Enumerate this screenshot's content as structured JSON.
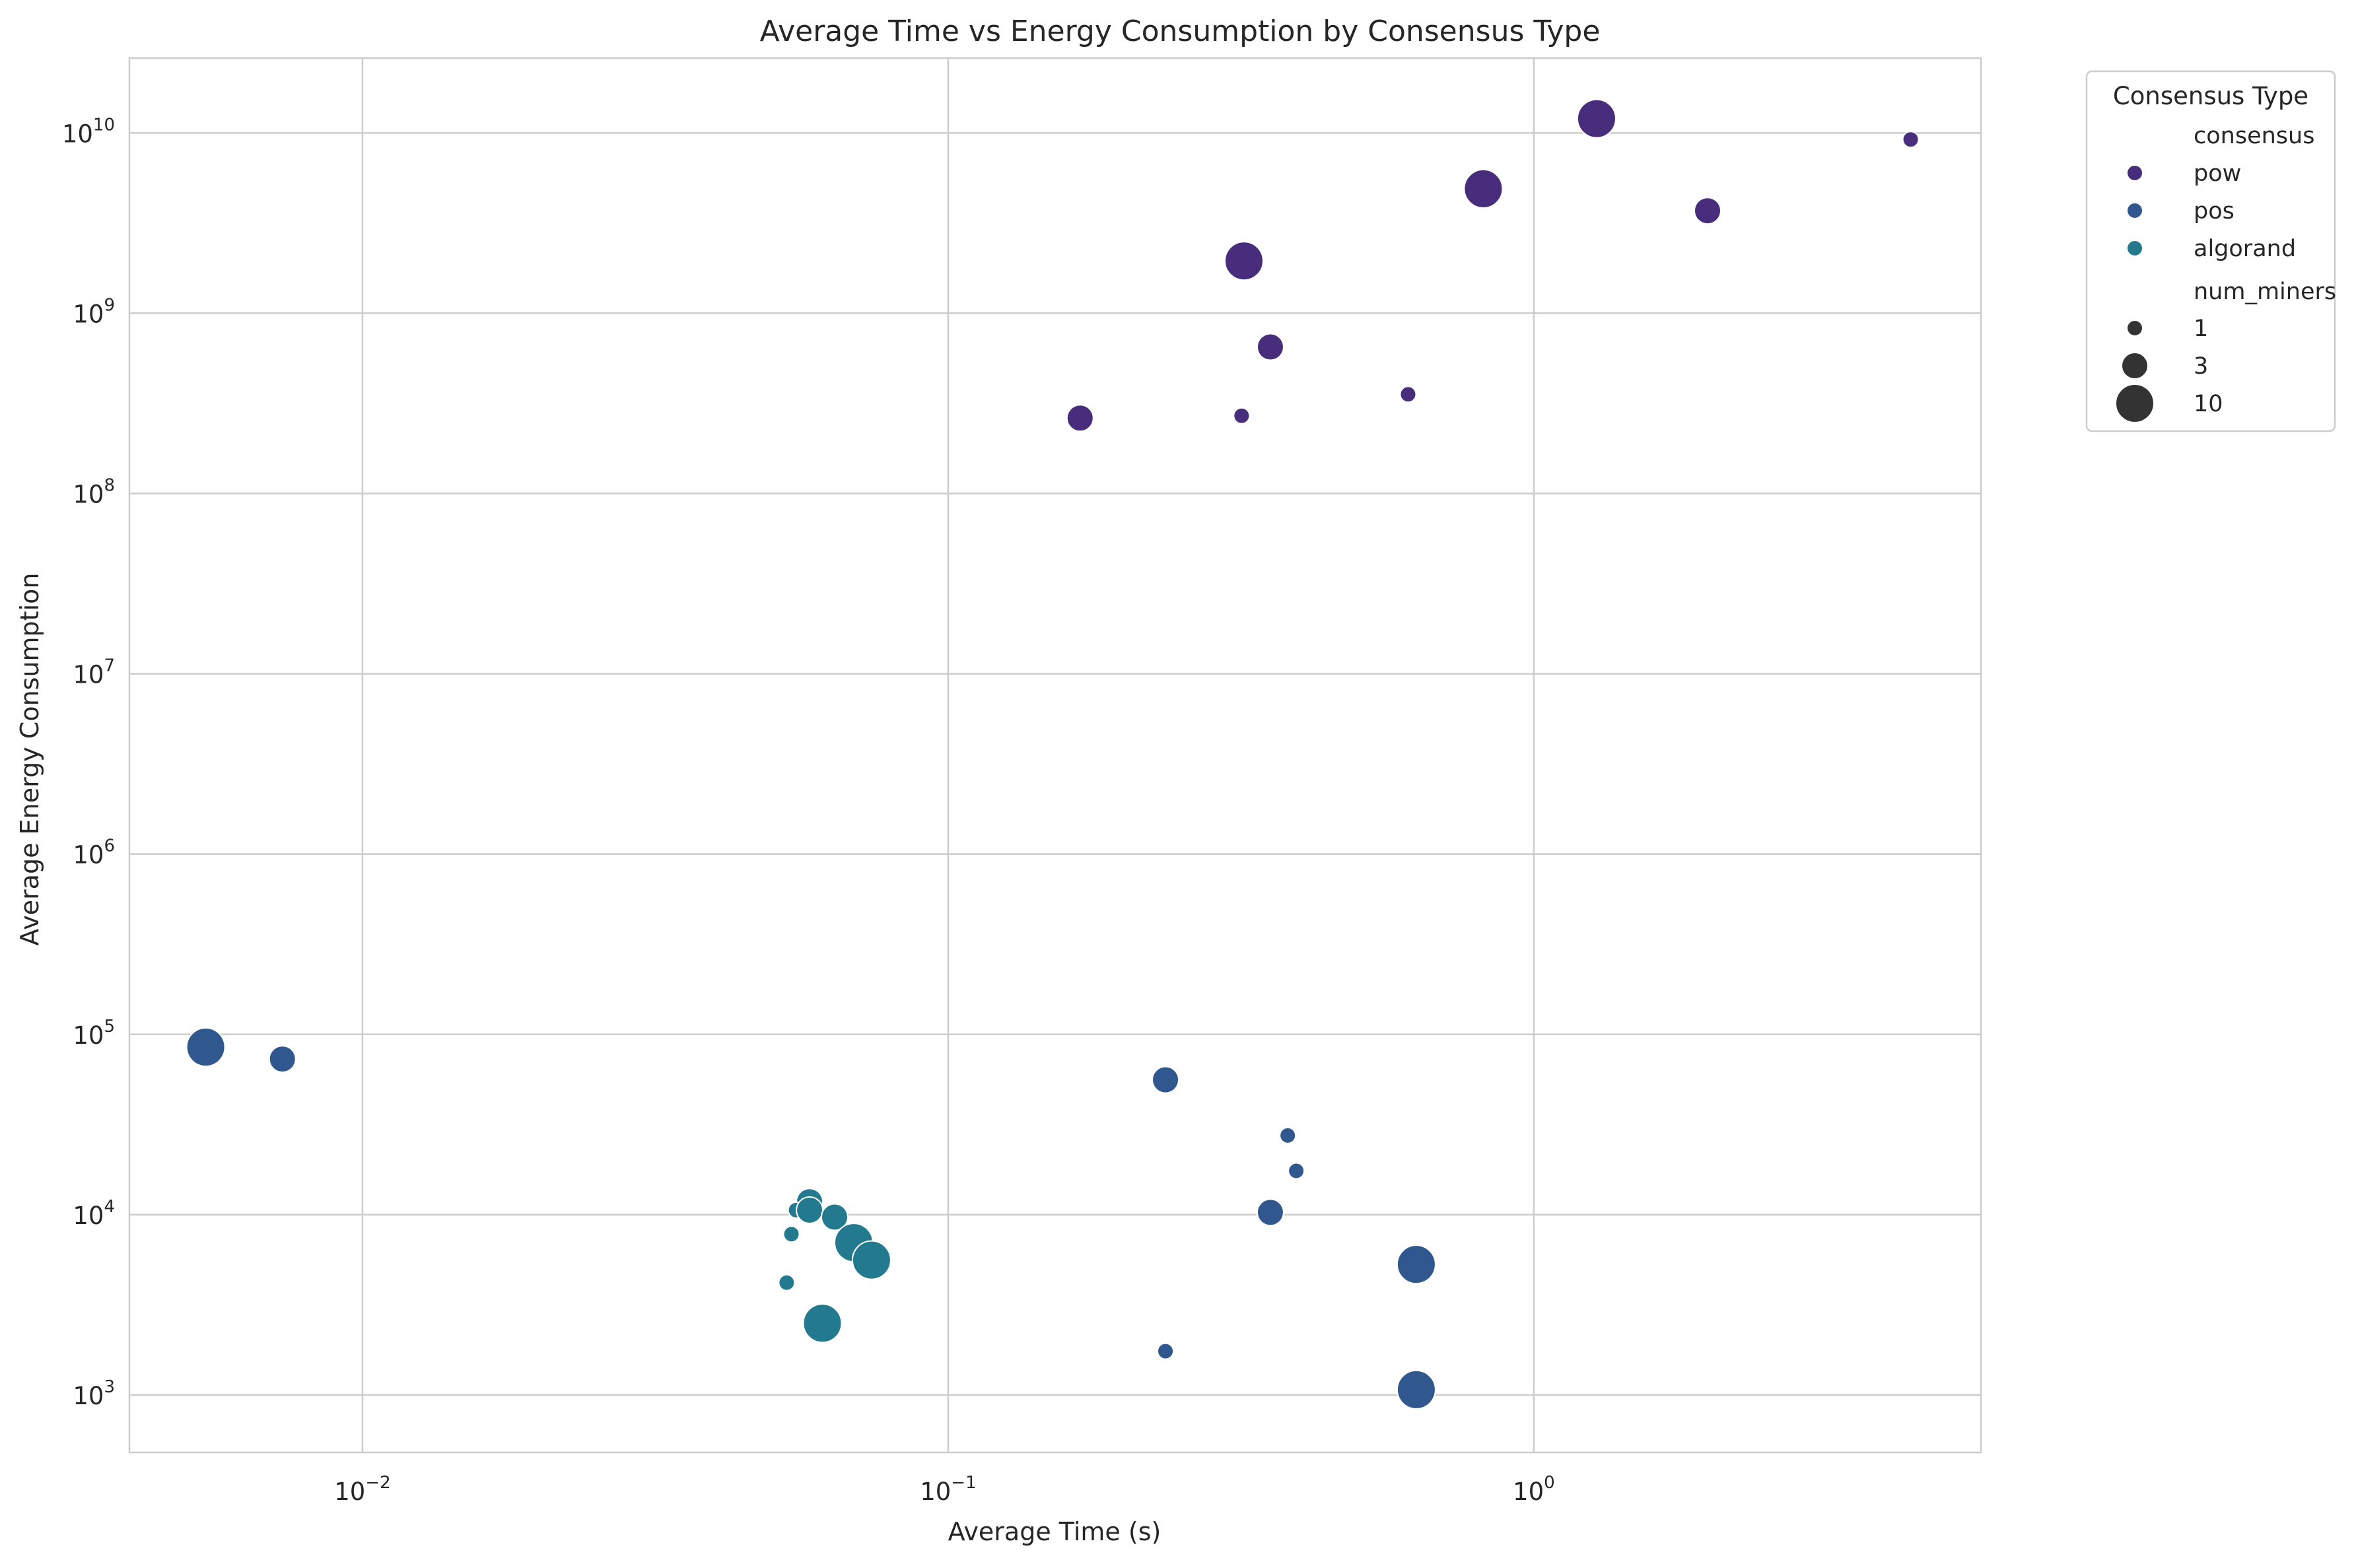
{
  "chart_data": {
    "type": "scatter",
    "title": "Average Time vs Energy Consumption by Consensus Type",
    "xlabel": "Average Time (s)",
    "ylabel": "Average Energy Consumption",
    "x_scale": "log",
    "y_scale": "log",
    "xlim": [
      0.004,
      5.8
    ],
    "ylim": [
      480,
      26000000000
    ],
    "x_ticks": [
      {
        "base": "10",
        "exp": "−2"
      },
      {
        "base": "10",
        "exp": "−1"
      },
      {
        "base": "10",
        "exp": "0"
      }
    ],
    "y_ticks": [
      {
        "base": "10",
        "exp": "3"
      },
      {
        "base": "10",
        "exp": "4"
      },
      {
        "base": "10",
        "exp": "5"
      },
      {
        "base": "10",
        "exp": "6"
      },
      {
        "base": "10",
        "exp": "7"
      },
      {
        "base": "10",
        "exp": "8"
      },
      {
        "base": "10",
        "exp": "9"
      },
      {
        "base": "10",
        "exp": "10"
      }
    ],
    "grid": true,
    "legend": {
      "title": "Consensus Type",
      "placement": "outside-top-right",
      "hue_title": "consensus",
      "size_title": "num_miners",
      "size_entries": [
        {
          "label": "1",
          "value": 1
        },
        {
          "label": "3",
          "value": 3
        },
        {
          "label": "10",
          "value": 10
        }
      ]
    },
    "series": [
      {
        "name": "pow",
        "color": "#472d7b",
        "points": [
          {
            "x": 1.28,
            "y": 12000000000,
            "num_miners": 10
          },
          {
            "x": 4.4,
            "y": 9200000000,
            "num_miners": 1
          },
          {
            "x": 0.82,
            "y": 4900000000,
            "num_miners": 10
          },
          {
            "x": 1.98,
            "y": 3700000000,
            "num_miners": 3
          },
          {
            "x": 0.32,
            "y": 1950000000,
            "num_miners": 10
          },
          {
            "x": 0.355,
            "y": 650000000,
            "num_miners": 3
          },
          {
            "x": 0.61,
            "y": 355000000,
            "num_miners": 1
          },
          {
            "x": 0.317,
            "y": 270000000,
            "num_miners": 1
          },
          {
            "x": 0.168,
            "y": 262000000,
            "num_miners": 3
          }
        ]
      },
      {
        "name": "pos",
        "color": "#31588e",
        "points": [
          {
            "x": 0.0054,
            "y": 85000,
            "num_miners": 10
          },
          {
            "x": 0.0073,
            "y": 73000,
            "num_miners": 3
          },
          {
            "x": 0.235,
            "y": 56000,
            "num_miners": 3
          },
          {
            "x": 0.38,
            "y": 27500,
            "num_miners": 1
          },
          {
            "x": 0.393,
            "y": 17500,
            "num_miners": 1
          },
          {
            "x": 0.355,
            "y": 10300,
            "num_miners": 3
          },
          {
            "x": 0.63,
            "y": 5300,
            "num_miners": 10
          },
          {
            "x": 0.235,
            "y": 1750,
            "num_miners": 1
          },
          {
            "x": 0.63,
            "y": 1070,
            "num_miners": 10
          }
        ]
      },
      {
        "name": "algorand",
        "color": "#23798e",
        "points": [
          {
            "x": 0.058,
            "y": 11800,
            "num_miners": 3
          },
          {
            "x": 0.055,
            "y": 10600,
            "num_miners": 1
          },
          {
            "x": 0.058,
            "y": 10600,
            "num_miners": 3
          },
          {
            "x": 0.064,
            "y": 9700,
            "num_miners": 3
          },
          {
            "x": 0.054,
            "y": 7800,
            "num_miners": 1
          },
          {
            "x": 0.069,
            "y": 7000,
            "num_miners": 10
          },
          {
            "x": 0.074,
            "y": 5600,
            "num_miners": 10
          },
          {
            "x": 0.053,
            "y": 4200,
            "num_miners": 1
          },
          {
            "x": 0.061,
            "y": 2500,
            "num_miners": 10
          }
        ]
      }
    ]
  }
}
